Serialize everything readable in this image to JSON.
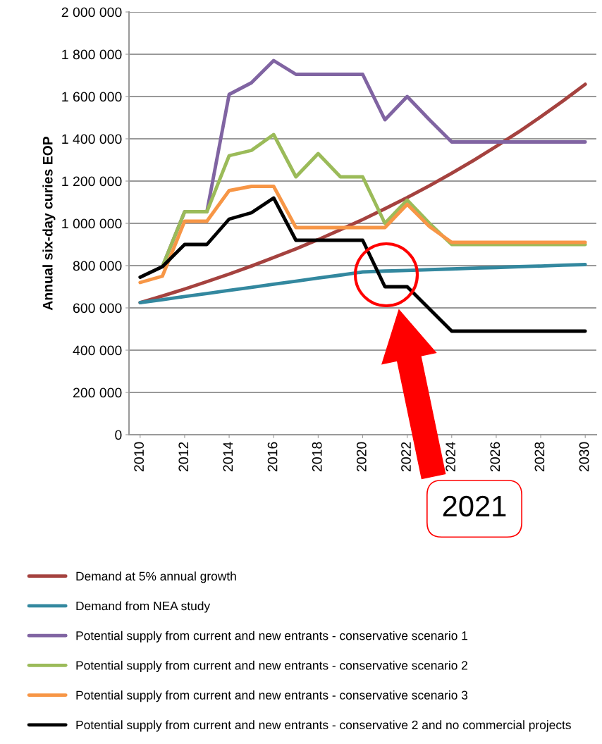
{
  "chart_data": {
    "type": "line",
    "ylabel": "Annual six-day curies EOP",
    "x": [
      2010,
      2011,
      2012,
      2013,
      2014,
      2015,
      2016,
      2017,
      2018,
      2019,
      2020,
      2021,
      2022,
      2023,
      2024,
      2025,
      2026,
      2027,
      2028,
      2029,
      2030
    ],
    "xlim": [
      2009.5,
      2030.5
    ],
    "xticks": [
      2010,
      2012,
      2014,
      2016,
      2018,
      2020,
      2022,
      2024,
      2026,
      2028,
      2030
    ],
    "ylim": [
      0,
      2000000
    ],
    "yticks": [
      {
        "value": 0,
        "label": "0"
      },
      {
        "value": 200000,
        "label": "200 000"
      },
      {
        "value": 400000,
        "label": "400 000"
      },
      {
        "value": 600000,
        "label": "600 000"
      },
      {
        "value": 800000,
        "label": "800 000"
      },
      {
        "value": 1000000,
        "label": "1 000 000"
      },
      {
        "value": 1200000,
        "label": "1 200 000"
      },
      {
        "value": 1400000,
        "label": "1 400 000"
      },
      {
        "value": 1600000,
        "label": "1 600 000"
      },
      {
        "value": 1800000,
        "label": "1 800 000"
      },
      {
        "value": 2000000,
        "label": "2 000 000"
      }
    ],
    "grid": "y",
    "legend": "bottom",
    "marker": "none",
    "line_style": "solid",
    "series": [
      {
        "name": "Demand at 5% annual growth",
        "color": "#a5423f",
        "values": [
          625000,
          656000,
          689000,
          724000,
          760000,
          798000,
          838000,
          879000,
          923000,
          970000,
          1018000,
          1069000,
          1122000,
          1178000,
          1237000,
          1299000,
          1364000,
          1432000,
          1504000,
          1579000,
          1658000
        ]
      },
      {
        "name": "Demand from NEA study",
        "color": "#33889f",
        "values": [
          625000,
          639000,
          654000,
          668000,
          683000,
          697000,
          712000,
          726000,
          741000,
          755000,
          770000,
          774000,
          777000,
          781000,
          784000,
          788000,
          791000,
          795000,
          798000,
          802000,
          805000
        ]
      },
      {
        "name": "Potential supply from current and new entrants - conservative scenario 1",
        "color": "#8064a2",
        "values": [
          null,
          795000,
          1055000,
          1055000,
          1610000,
          1665000,
          1770000,
          1705000,
          1705000,
          1705000,
          1705000,
          1490000,
          1600000,
          1490000,
          1385000,
          1385000,
          1385000,
          1385000,
          1385000,
          1385000,
          1385000
        ]
      },
      {
        "name": "Potential supply from current and new entrants - conservative scenario 2",
        "color": "#9bbb59",
        "values": [
          null,
          795000,
          1055000,
          1055000,
          1320000,
          1345000,
          1420000,
          1220000,
          1330000,
          1220000,
          1220000,
          1000000,
          1110000,
          1000000,
          900000,
          900000,
          900000,
          900000,
          900000,
          900000,
          900000
        ]
      },
      {
        "name": "Potential supply from current and new entrants - conservative scenario 3",
        "color": "#f79646",
        "values": [
          720000,
          750000,
          1010000,
          1010000,
          1155000,
          1175000,
          1175000,
          980000,
          980000,
          980000,
          980000,
          980000,
          1090000,
          985000,
          910000,
          910000,
          910000,
          910000,
          910000,
          910000,
          910000
        ]
      },
      {
        "name": "Potential supply from current and new entrants - conservative 2 and no commercial projects",
        "color": "#000000",
        "values": [
          745000,
          795000,
          900000,
          900000,
          1020000,
          1050000,
          1120000,
          920000,
          920000,
          920000,
          920000,
          700000,
          700000,
          595000,
          490000,
          490000,
          490000,
          490000,
          490000,
          490000,
          490000
        ]
      }
    ],
    "annotations": [
      "2021"
    ]
  }
}
